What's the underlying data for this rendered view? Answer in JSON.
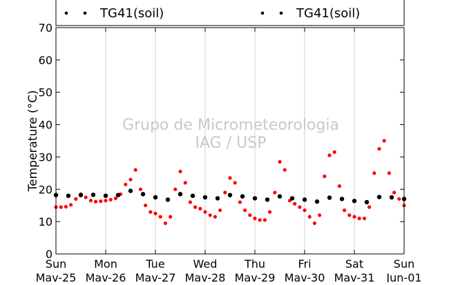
{
  "chart_data": {
    "type": "scatter",
    "ylabel": "Temperature (°C)",
    "ylim": [
      0,
      70
    ],
    "y_ticks": [
      0,
      10,
      20,
      30,
      40,
      50,
      60,
      70
    ],
    "x_range_days": [
      0,
      7
    ],
    "x_ticks": [
      {
        "day": 0,
        "weekday": "Sun",
        "date": "Mav-25"
      },
      {
        "day": 1,
        "weekday": "Mon",
        "date": "Mav-26"
      },
      {
        "day": 2,
        "weekday": "Tue",
        "date": "Mav-27"
      },
      {
        "day": 3,
        "weekday": "Wed",
        "date": "Mav-28"
      },
      {
        "day": 4,
        "weekday": "Thu",
        "date": "Mav-29"
      },
      {
        "day": 5,
        "weekday": "Fri",
        "date": "Mav-30"
      },
      {
        "day": 6,
        "weekday": "Sat",
        "date": "Mav-31"
      },
      {
        "day": 7,
        "weekday": "Sun",
        "date": "Jun-01"
      }
    ],
    "grid": "vertical",
    "legend_entries": [
      "TG41(soil)",
      "TG41(soil)"
    ],
    "watermark": [
      "Grupo de Micrometeorologia",
      "IAG / USP"
    ],
    "series": [
      {
        "color": "#ff0000",
        "x": [
          0.0,
          0.1,
          0.2,
          0.3,
          0.4,
          0.5,
          0.6,
          0.7,
          0.8,
          0.9,
          1.0,
          1.1,
          1.2,
          1.3,
          1.4,
          1.5,
          1.6,
          1.7,
          1.8,
          1.9,
          2.0,
          2.1,
          2.2,
          2.3,
          2.4,
          2.5,
          2.6,
          2.7,
          2.8,
          2.9,
          3.0,
          3.1,
          3.2,
          3.3,
          3.4,
          3.5,
          3.6,
          3.7,
          3.8,
          3.9,
          4.0,
          4.1,
          4.2,
          4.3,
          4.4,
          4.5,
          4.6,
          4.7,
          4.8,
          4.9,
          5.0,
          5.1,
          5.2,
          5.3,
          5.4,
          5.5,
          5.6,
          5.7,
          5.8,
          5.9,
          6.0,
          6.1,
          6.2,
          6.3,
          6.4,
          6.5,
          6.6,
          6.7,
          6.8,
          6.9,
          7.0
        ],
        "y": [
          14.5,
          14.5,
          14.6,
          15.2,
          17.0,
          18.5,
          17.5,
          16.5,
          16.2,
          16.3,
          16.5,
          16.8,
          17.2,
          18.5,
          21.5,
          23.0,
          26.0,
          20.0,
          15.0,
          13.0,
          12.5,
          11.5,
          9.5,
          11.5,
          20.0,
          25.5,
          22.0,
          16.0,
          14.5,
          14.0,
          13.0,
          12.0,
          11.5,
          13.5,
          19.0,
          23.5,
          22.0,
          16.0,
          13.5,
          12.0,
          11.0,
          10.5,
          10.5,
          13.0,
          19.0,
          28.5,
          26.0,
          16.5,
          15.5,
          14.5,
          13.5,
          11.5,
          9.5,
          12.0,
          24.0,
          30.5,
          31.5,
          21.0,
          13.5,
          12.0,
          11.5,
          11.0,
          11.0,
          14.5,
          25.0,
          32.5,
          35.0,
          25.0,
          19.0,
          17.0,
          15.0
        ]
      },
      {
        "color": "#000000",
        "x": [
          0.0,
          0.25,
          0.5,
          0.75,
          1.0,
          1.25,
          1.5,
          1.75,
          2.0,
          2.25,
          2.5,
          2.75,
          3.0,
          3.25,
          3.5,
          3.75,
          4.0,
          4.25,
          4.5,
          4.75,
          5.0,
          5.25,
          5.5,
          5.75,
          6.0,
          6.25,
          6.5,
          6.75,
          7.0
        ],
        "y": [
          18.2,
          18.0,
          18.2,
          18.3,
          18.0,
          18.2,
          19.5,
          18.5,
          17.5,
          16.8,
          18.5,
          18.0,
          17.5,
          17.2,
          18.2,
          17.8,
          17.2,
          16.8,
          17.8,
          17.2,
          16.8,
          16.2,
          17.4,
          17.0,
          16.4,
          16.0,
          17.6,
          17.5,
          17.0
        ]
      }
    ]
  }
}
